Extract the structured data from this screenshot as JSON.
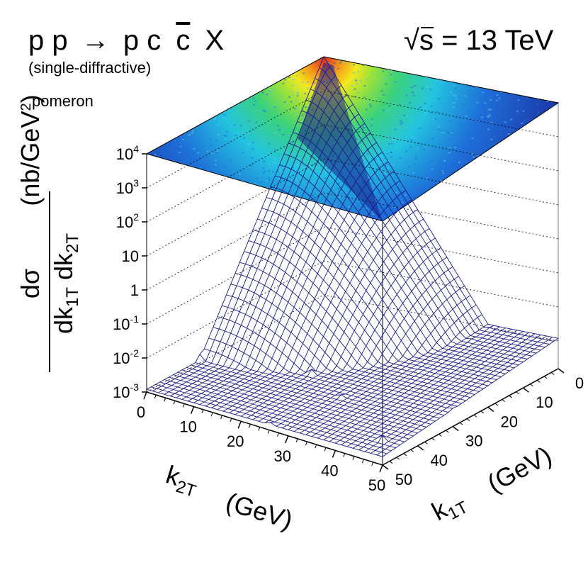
{
  "chart_data": {
    "type": "lego-surface-3d",
    "title": {
      "process_parts": [
        "p p",
        "→",
        "p c",
        "c",
        "X"
      ],
      "process_full": "p p → p c c̄ X",
      "subtitle": "(single-diffractive)",
      "label": "pomeron",
      "energy_sqrt": "√",
      "energy": "s = 13 TeV"
    },
    "x_axis": {
      "title_main": "k",
      "title_sub": "2T",
      "title_unit": "(GeV)",
      "range": [
        0,
        50
      ],
      "ticks": [
        "0",
        "10",
        "20",
        "30",
        "40",
        "50"
      ]
    },
    "y_axis": {
      "title_main": "k",
      "title_sub": "1T",
      "title_unit": "(GeV)",
      "range": [
        0,
        50
      ],
      "ticks": [
        "0",
        "10",
        "20",
        "30",
        "40",
        "50"
      ]
    },
    "z_axis": {
      "scale": "log",
      "range": [
        0.001,
        10000
      ],
      "numerator": "dσ",
      "den_d1": "dk",
      "den_sub1": "1T",
      "den_d2": " dk",
      "den_sub2": "2T",
      "unit_open": "(nb/GeV",
      "unit_sup": "2",
      "unit_close": ")",
      "ticks": [
        {
          "base": "10",
          "exp": "4",
          "value": 10000
        },
        {
          "base": "10",
          "exp": "3",
          "value": 1000
        },
        {
          "base": "10",
          "exp": "2",
          "value": 100
        },
        {
          "base": "10",
          "exp": "",
          "value": 10
        },
        {
          "base": "1",
          "exp": "",
          "value": 1
        },
        {
          "base": "10",
          "exp": "-1",
          "value": 0.1
        },
        {
          "base": "10",
          "exp": "-2",
          "value": 0.01
        },
        {
          "base": "10",
          "exp": "-3",
          "value": 0.001
        }
      ]
    },
    "surface": {
      "peak_location": [
        0,
        0
      ],
      "peak_value": 10000,
      "floor_value": 0.001,
      "description_values": "distribution peaked at k1T = k2T = 0, falling steeply with increasing transverse momenta"
    },
    "colors": {
      "mesh": "#1a1a8c",
      "palette": [
        "#1b2a9c",
        "#1e6fd8",
        "#23c4e0",
        "#3bd27a",
        "#b8e23a",
        "#f3e81e",
        "#f59a1a",
        "#e02a1a"
      ]
    }
  }
}
